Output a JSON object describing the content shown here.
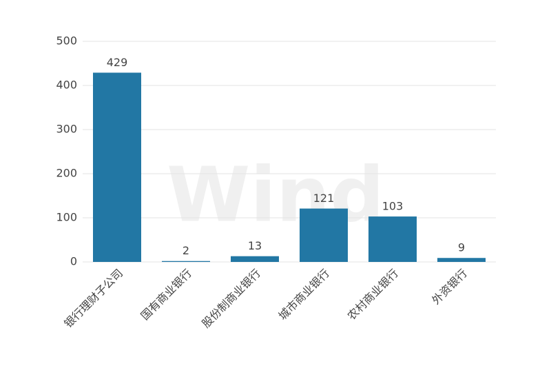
{
  "chart_data": {
    "type": "bar",
    "watermark": "Wind",
    "categories": [
      "银行理财子公司",
      "国有商业银行",
      "股份制商业银行",
      "城市商业银行",
      "农村商业银行",
      "外资银行"
    ],
    "values": [
      429,
      2,
      13,
      121,
      103,
      9
    ],
    "color": "#2277a4",
    "ylim": [
      0,
      500
    ],
    "yticks": [
      0,
      100,
      200,
      300,
      400,
      500
    ],
    "grid": true,
    "data_labels": true
  }
}
